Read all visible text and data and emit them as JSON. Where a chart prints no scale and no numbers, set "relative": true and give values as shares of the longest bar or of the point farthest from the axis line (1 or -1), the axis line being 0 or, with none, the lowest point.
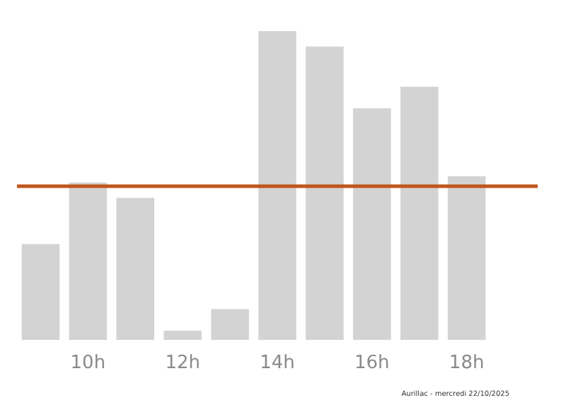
{
  "chart_data": {
    "type": "bar",
    "relative": true,
    "categories": [
      null,
      "10h",
      null,
      "12h",
      null,
      "14h",
      null,
      "16h",
      null,
      "18h",
      null
    ],
    "values": [
      0.31,
      0.51,
      0.46,
      0.03,
      0.1,
      1,
      0.95,
      0.75,
      0.82,
      0.53,
      null
    ],
    "color": "#d3d3d3",
    "grid": false,
    "ref_lines": [
      {
        "axis": "y",
        "value": 0.5,
        "color": "#c0561c"
      }
    ],
    "annotations": [
      "Aurillac - mercredi 22/10/2025"
    ]
  }
}
